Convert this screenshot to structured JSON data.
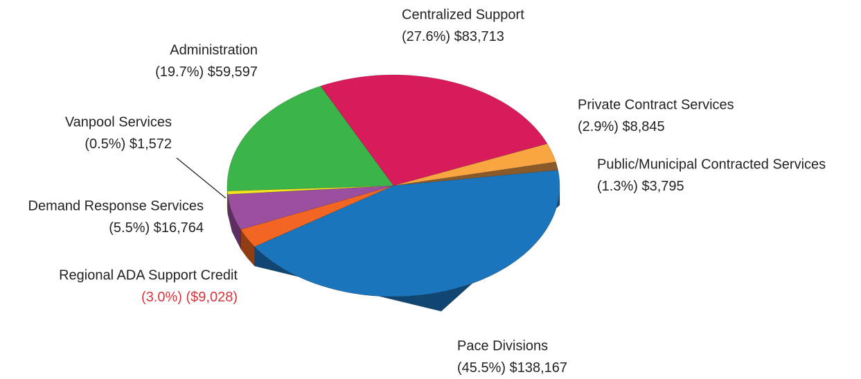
{
  "chart_data": {
    "type": "pie3d",
    "categories": [
      "Centralized Support",
      "Private Contract Services",
      "Public/Municipal Contracted Services",
      "Pace Divisions",
      "Regional ADA Support Credit",
      "Demand Response Services",
      "Vanpool Services",
      "Administration"
    ],
    "values": [
      83713,
      8845,
      3795,
      138167,
      -9028,
      16764,
      1572,
      59597
    ],
    "value_labels": [
      "$83,713",
      "$8,845",
      "$3,795",
      "$138,167",
      "($9,028)",
      "$16,764",
      "$1,572",
      "$59,597"
    ],
    "percents": [
      27.6,
      2.9,
      1.3,
      45.5,
      -3.0,
      5.5,
      0.5,
      19.7
    ],
    "percent_labels": [
      "(27.6%)",
      "(2.9%)",
      "(1.3%)",
      "(45.5%)",
      "(3.0%)",
      "(5.5%)",
      "(0.5%)",
      "(19.7%)"
    ],
    "colors": [
      "#d81b5a",
      "#f9a541",
      "#8b5a2b",
      "#1a75bd",
      "#f26522",
      "#9b4f9f",
      "#f2e51e",
      "#3bb54a"
    ]
  }
}
